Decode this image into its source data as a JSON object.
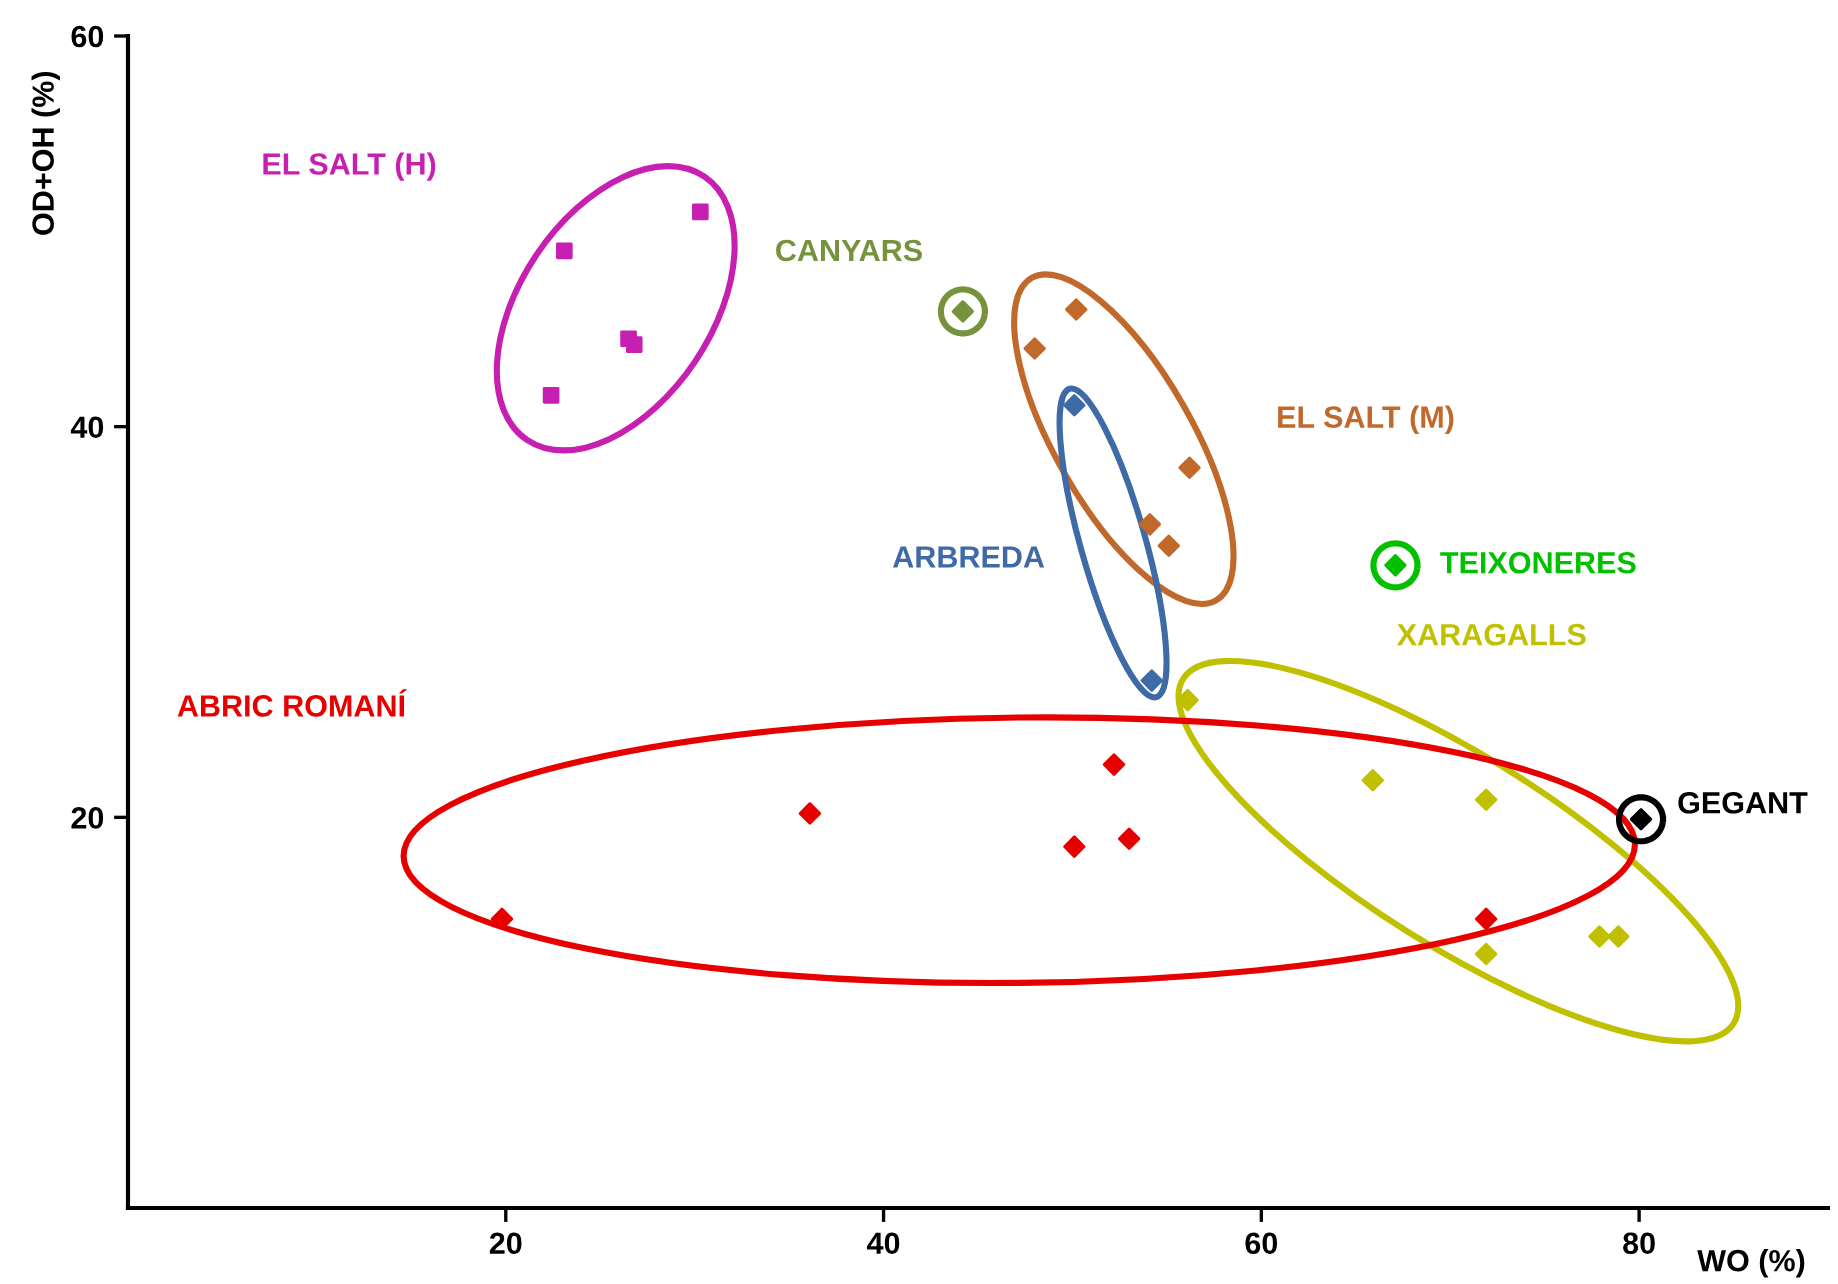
{
  "chart_data": {
    "type": "scatter",
    "xlabel": "WO (%)",
    "ylabel": "OD+OH (%)",
    "xlim": [
      0,
      90
    ],
    "ylim": [
      0,
      60
    ],
    "xticks": [
      20,
      40,
      60,
      80
    ],
    "yticks": [
      20,
      40,
      60
    ],
    "grid": false,
    "legend": false,
    "series": [
      {
        "name": "EL SALT (H)",
        "color": "#c71fb0",
        "marker": "square",
        "x": [
          23.1,
          30.3,
          26.5,
          26.8,
          22.4
        ],
        "values": [
          49.0,
          51.0,
          44.5,
          44.2,
          41.6
        ]
      },
      {
        "name": "CANYARS",
        "color": "#76923c",
        "marker": "diamond",
        "x": [
          44.2
        ],
        "values": [
          45.9
        ]
      },
      {
        "name": "EL SALT (M)",
        "color": "#c0692a",
        "marker": "diamond",
        "x": [
          50.2,
          48.0,
          56.2,
          54.1,
          55.1
        ],
        "values": [
          46.0,
          44.0,
          37.9,
          35.0,
          33.9
        ]
      },
      {
        "name": "ARBREDA",
        "color": "#3e6aa5",
        "marker": "diamond",
        "x": [
          50.1,
          54.2
        ],
        "values": [
          41.1,
          27.0
        ]
      },
      {
        "name": "TEIXONERES",
        "color": "#00c000",
        "marker": "diamond",
        "x": [
          67.1
        ],
        "values": [
          32.9
        ]
      },
      {
        "name": "XARAGALLS",
        "color": "#c0c000",
        "marker": "diamond",
        "x": [
          56.1,
          65.9,
          71.9,
          77.9,
          78.9,
          71.9
        ],
        "values": [
          26.0,
          21.9,
          20.9,
          13.9,
          13.9,
          13.0
        ]
      },
      {
        "name": "GEGANT",
        "color": "#000000",
        "marker": "diamond",
        "x": [
          80.1
        ],
        "values": [
          19.9
        ]
      },
      {
        "name": "ABRIC ROMANÍ",
        "color": "#e60000",
        "marker": "diamond",
        "x": [
          19.8,
          36.1,
          52.2,
          50.1,
          53.0,
          71.9
        ],
        "values": [
          14.8,
          20.2,
          22.7,
          18.5,
          18.9,
          14.8
        ]
      }
    ]
  }
}
